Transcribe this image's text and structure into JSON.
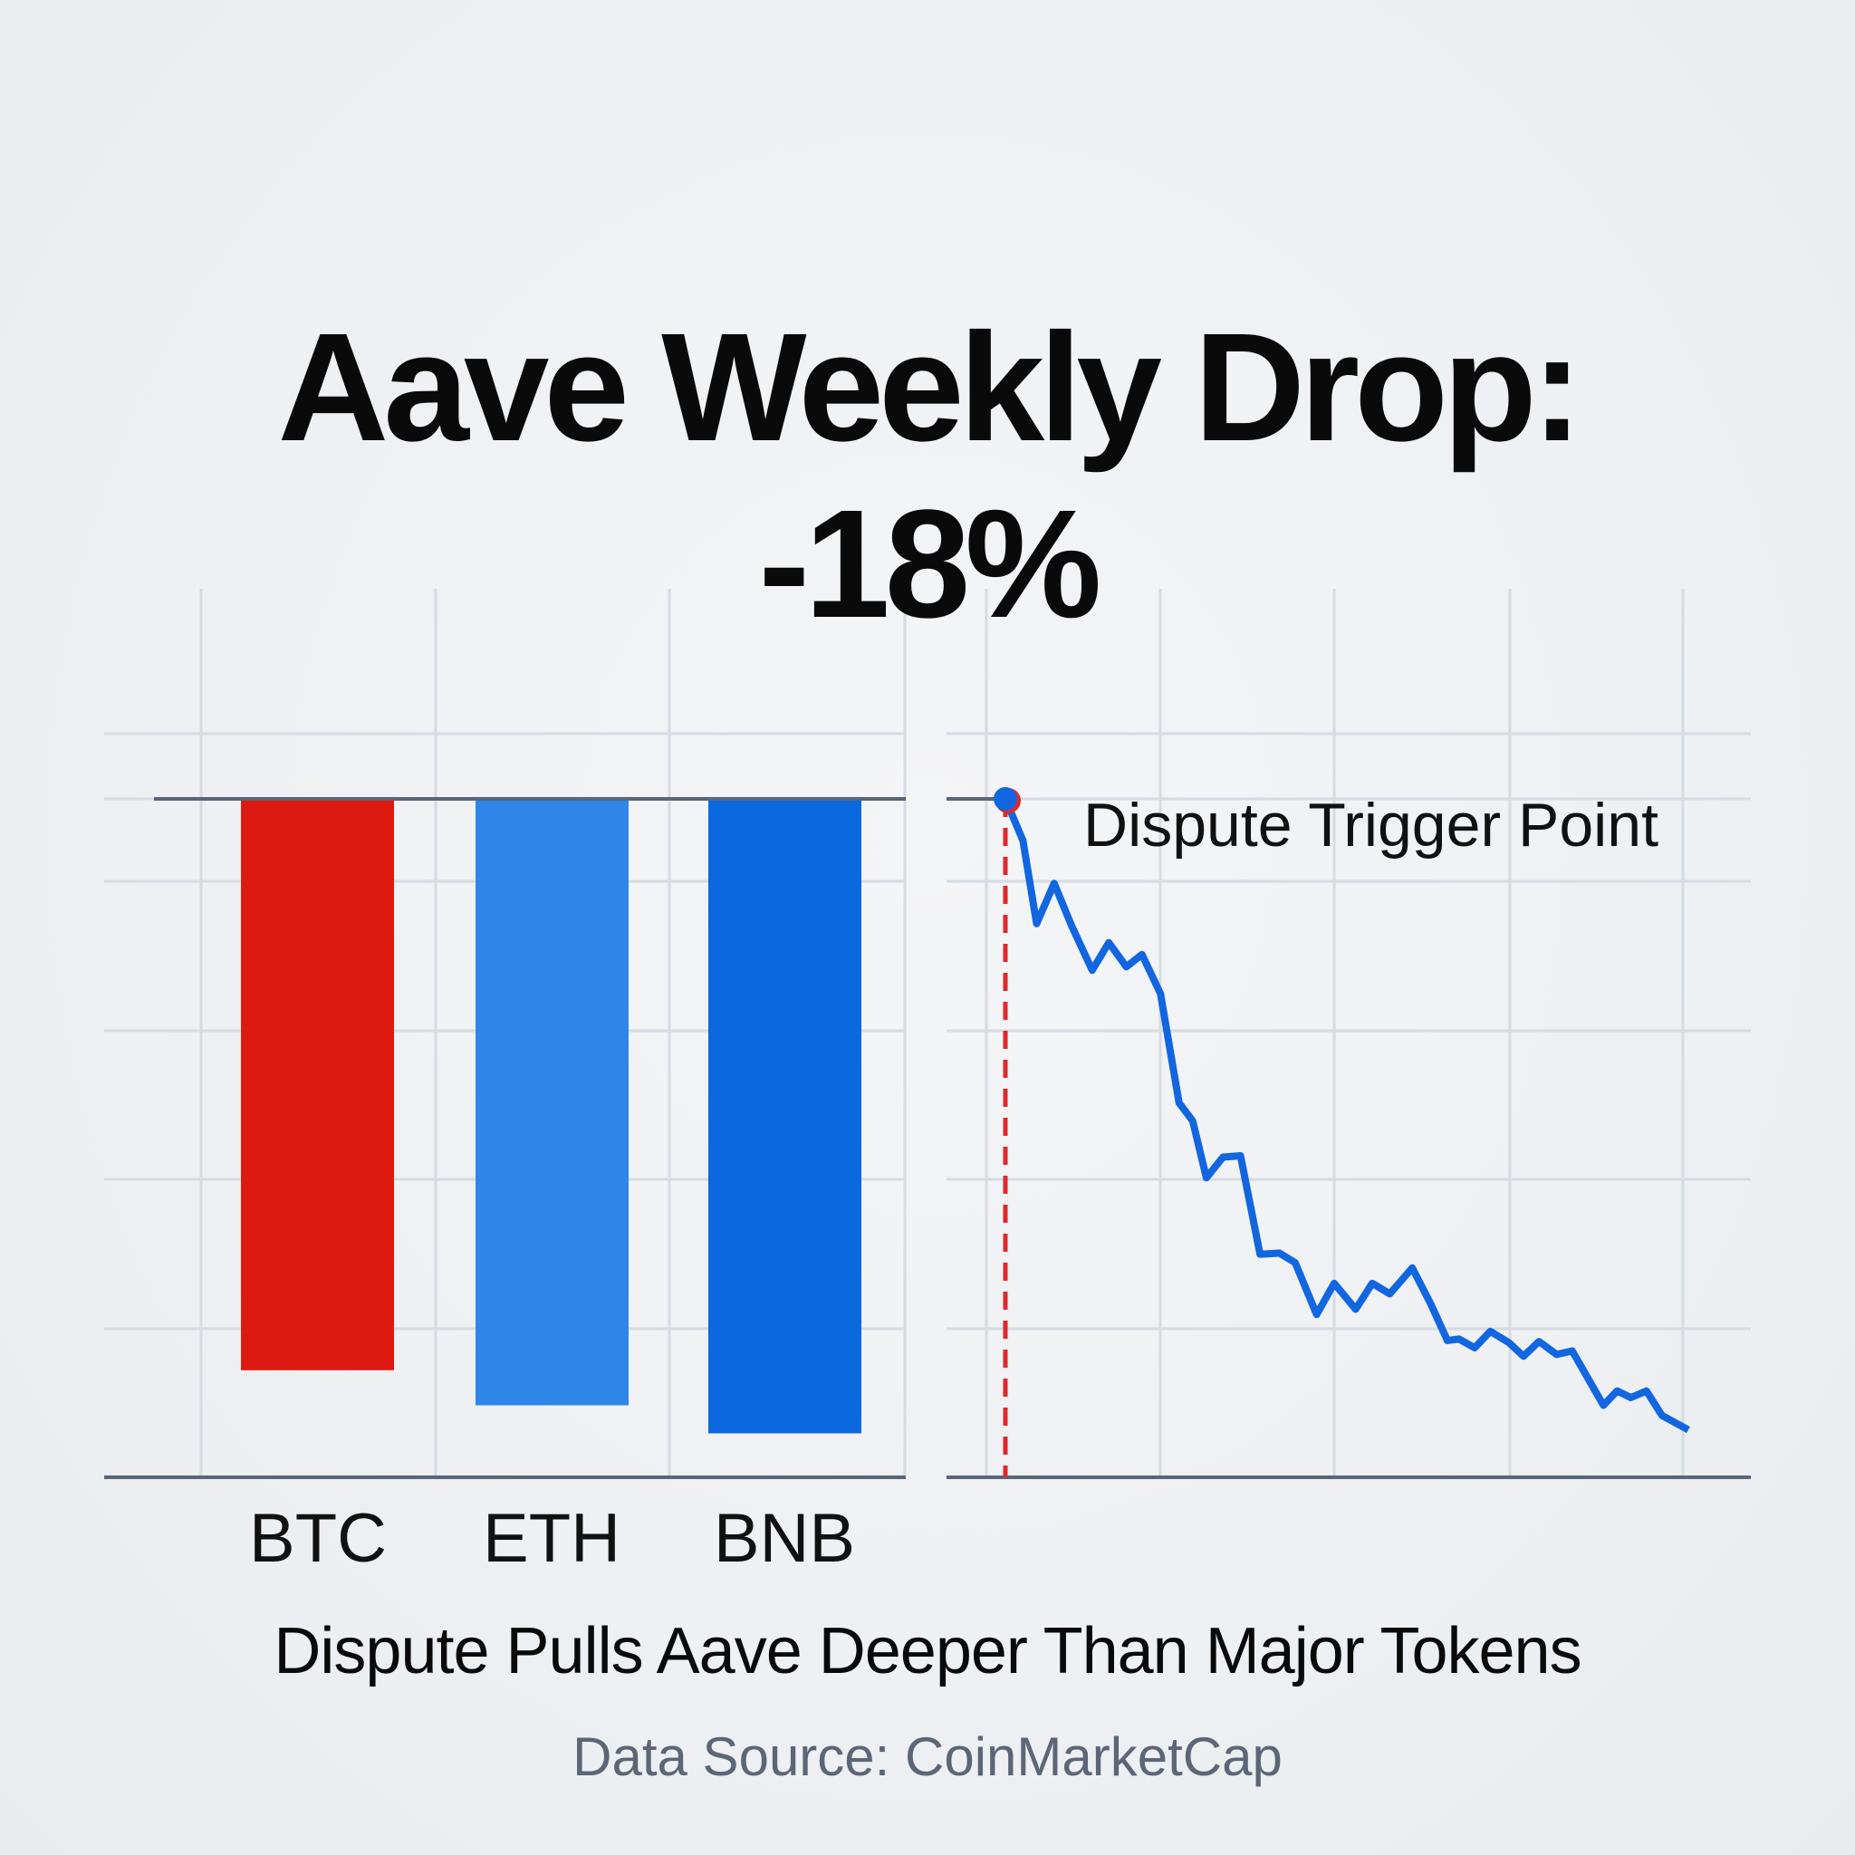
{
  "title": {
    "line1": "Aave Weekly Drop:",
    "line2": "-18%"
  },
  "subtitle": "Dispute Pulls Aave Deeper Than Major Tokens",
  "source": "Data Source: CoinMarketCap",
  "colors": {
    "btc": "#dc1a12",
    "eth": "#2f86e8",
    "bnb": "#0b68de",
    "line": "#1266e0",
    "trigger": "#e0282a",
    "axis": "#5b6578",
    "grid": "#d6dbe2"
  },
  "chart_data": [
    {
      "type": "bar",
      "categories": [
        "BTC",
        "ETH",
        "BNB"
      ],
      "values": [
        -16.3,
        -17.3,
        -18.1
      ],
      "unit": "%",
      "ylim": [
        -19.4,
        3.5
      ],
      "grid": true
    },
    {
      "type": "line",
      "annotation": "Dispute Trigger Point",
      "trigger_x": 0,
      "xlim": [
        -0.1,
        7.6
      ],
      "ylim": [
        -19.4,
        3.5
      ],
      "grid": true,
      "x": [
        0,
        0.18,
        0.32,
        0.5,
        0.68,
        0.89,
        1.06,
        1.24,
        1.4,
        1.59,
        1.78,
        1.92,
        2.06,
        2.23,
        2.41,
        2.61,
        2.81,
        2.97,
        3.19,
        3.37,
        3.59,
        3.76,
        3.94,
        4.17,
        4.36,
        4.53,
        4.65,
        4.81,
        4.97,
        5.16,
        5.31,
        5.47,
        5.65,
        5.81,
        6.13,
        6.27,
        6.41,
        6.57,
        6.73,
        7.0
      ],
      "y": [
        0,
        -1.19,
        -3.56,
        -2.41,
        -3.63,
        -4.89,
        -4.1,
        -4.79,
        -4.44,
        -5.56,
        -8.67,
        -9.19,
        -10.81,
        -10.22,
        -10.18,
        -12.99,
        -12.96,
        -13.23,
        -14.71,
        -13.82,
        -14.56,
        -13.82,
        -14.12,
        -13.38,
        -14.41,
        -15.45,
        -15.41,
        -15.66,
        -15.19,
        -15.51,
        -15.9,
        -15.48,
        -15.85,
        -15.75,
        -17.3,
        -16.89,
        -17.08,
        -16.89,
        -17.59,
        -18.0
      ]
    }
  ]
}
